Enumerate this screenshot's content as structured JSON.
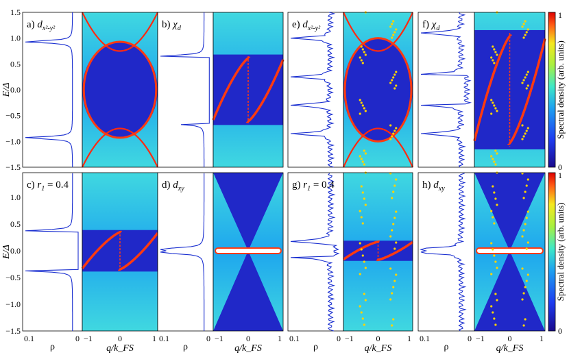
{
  "chart_data": {
    "type": "heatmap",
    "yaxis": {
      "label": "E/Δ",
      "ylim": [
        -1.5,
        1.5
      ]
    },
    "dos_axis": {
      "label": "ρ",
      "ticks": [
        "0.1",
        "0"
      ]
    },
    "q_axis": {
      "label": "q/k_FS",
      "ticks": [
        "−1",
        "0",
        "1"
      ],
      "xlim": [
        -1,
        1
      ]
    },
    "colorbar": {
      "label": "Spectral density (arb. units)",
      "ticks": [
        "1",
        "0"
      ]
    },
    "rows": [
      {
        "yticks": [
          "1.5",
          "1.0",
          "0.5",
          "0.0",
          "−0.5",
          "−1.0",
          "−1.5"
        ],
        "panels": [
          {
            "label": "a)",
            "sym": "d",
            "sub": "x²-y²",
            "dos_peaks": [
              0.93,
              -0.93
            ],
            "mode": "cross"
          },
          {
            "label": "b)",
            "sym": "χ",
            "sub": "d",
            "dos_peaks": [
              0.65,
              -0.65
            ],
            "mode": "chiral"
          },
          {
            "label": "e)",
            "sym": "d",
            "sub": "x²-y²",
            "dos_peaks": [
              1.0,
              -0.3,
              0.25,
              -0.85
            ],
            "mode": "cross-noisy"
          },
          {
            "label": "f)",
            "sym": "χ",
            "sub": "d",
            "dos_peaks": [
              1.1,
              0.3,
              -0.3,
              -0.85
            ],
            "mode": "chiral-noisy"
          }
        ]
      },
      {
        "yticks": [
          "1.0",
          "0.5",
          "0.0",
          "−0.5",
          "−1.0",
          "−1.5"
        ],
        "panels": [
          {
            "label": "c)",
            "sym": "r",
            "sub": "1",
            "suffix": " = 0.4",
            "dos_peaks": [
              0.37,
              -0.37
            ],
            "mode": "chiral"
          },
          {
            "label": "d)",
            "sym": "d",
            "sub": "xy",
            "dos_peaks": [
              0.03,
              -0.03
            ],
            "mode": "flat"
          },
          {
            "label": "g)",
            "sym": "r",
            "sub": "1",
            "suffix": " = 0.4",
            "dos_peaks": [
              0.18,
              -0.12
            ],
            "mode": "chiral-noisy"
          },
          {
            "label": "h)",
            "sym": "d",
            "sub": "xy",
            "dos_peaks": [
              0.03,
              -0.03
            ],
            "mode": "flat-noisy"
          }
        ]
      }
    ]
  }
}
